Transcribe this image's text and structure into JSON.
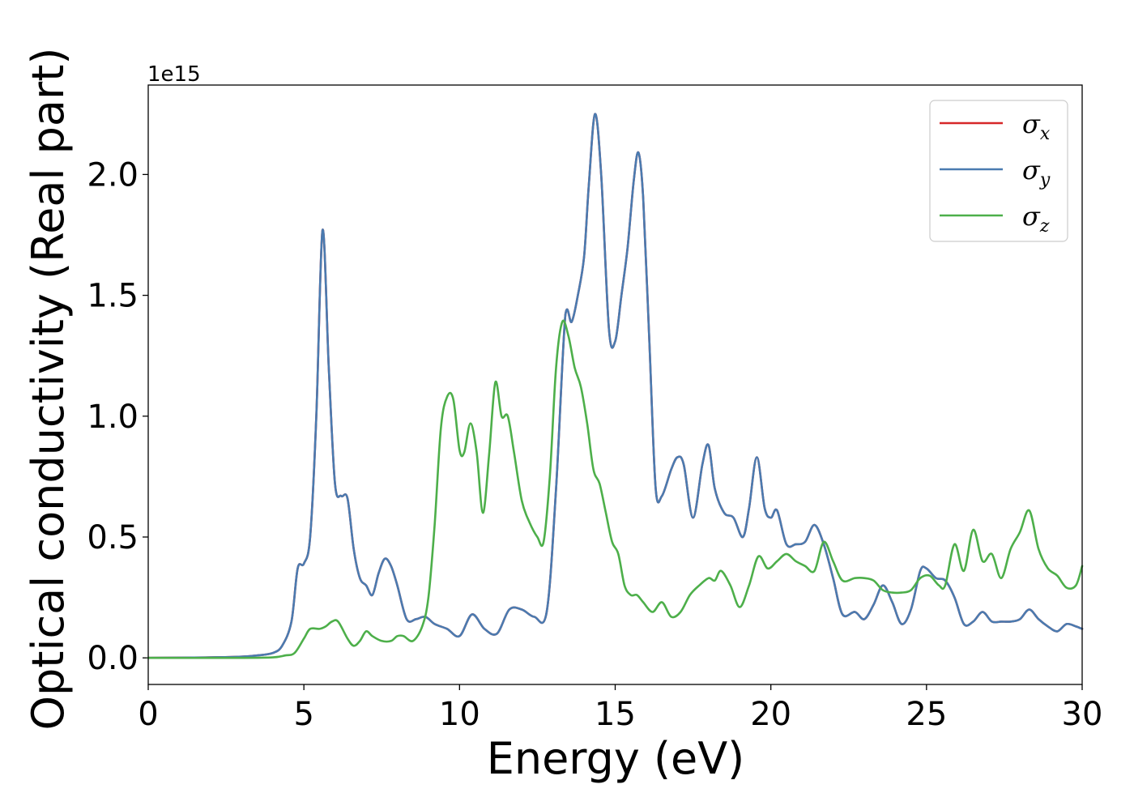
{
  "chart_data": {
    "type": "line",
    "xlabel": "Energy (eV)",
    "ylabel": "Optical conductivity (Real part)",
    "y_offset_label": "1e15",
    "xlim": [
      0,
      30
    ],
    "ylim": [
      -0.11,
      2.37
    ],
    "xticks": [
      0,
      5,
      10,
      15,
      20,
      25,
      30
    ],
    "xtick_labels": [
      "0",
      "5",
      "10",
      "15",
      "20",
      "25",
      "30"
    ],
    "yticks": [
      0.0,
      0.5,
      1.0,
      1.5,
      2.0
    ],
    "ytick_labels": [
      "0.0",
      "0.5",
      "1.0",
      "1.5",
      "2.0"
    ],
    "grid": false,
    "legend_position": "top-right",
    "series": [
      {
        "name": "σx",
        "legend_symbol": "σ",
        "legend_sub": "x",
        "color": "#d62728",
        "x": [
          0,
          2,
          3,
          3.5,
          4.0,
          4.3,
          4.6,
          4.8,
          5.0,
          5.2,
          5.4,
          5.6,
          5.8,
          6.0,
          6.2,
          6.4,
          6.6,
          6.8,
          7.0,
          7.2,
          7.4,
          7.6,
          7.8,
          8.0,
          8.3,
          8.6,
          8.9,
          9.2,
          9.6,
          10.0,
          10.4,
          10.8,
          11.2,
          11.6,
          12.0,
          12.4,
          12.8,
          13.1,
          13.4,
          13.6,
          13.8,
          14.0,
          14.15,
          14.35,
          14.55,
          14.8,
          15.0,
          15.2,
          15.4,
          15.6,
          15.75,
          15.9,
          16.1,
          16.3,
          16.5,
          16.8,
          17.0,
          17.2,
          17.5,
          17.8,
          18.0,
          18.2,
          18.5,
          18.8,
          19.1,
          19.3,
          19.55,
          19.8,
          20.0,
          20.2,
          20.5,
          20.8,
          21.1,
          21.4,
          21.7,
          22.0,
          22.3,
          22.7,
          23.0,
          23.3,
          23.6,
          23.9,
          24.2,
          24.5,
          24.8,
          25.0,
          25.3,
          25.6,
          25.9,
          26.2,
          26.5,
          26.8,
          27.1,
          27.4,
          27.7,
          28.0,
          28.3,
          28.6,
          28.9,
          29.2,
          29.5,
          29.8,
          30.0
        ],
        "y": [
          0.0,
          0.002,
          0.005,
          0.01,
          0.02,
          0.05,
          0.15,
          0.37,
          0.39,
          0.5,
          1.0,
          1.77,
          1.2,
          0.72,
          0.67,
          0.66,
          0.45,
          0.33,
          0.3,
          0.26,
          0.35,
          0.41,
          0.38,
          0.3,
          0.16,
          0.16,
          0.17,
          0.14,
          0.12,
          0.09,
          0.18,
          0.12,
          0.1,
          0.2,
          0.2,
          0.17,
          0.19,
          0.7,
          1.42,
          1.39,
          1.5,
          1.66,
          1.95,
          2.25,
          2.0,
          1.36,
          1.31,
          1.5,
          1.7,
          1.98,
          2.09,
          1.9,
          1.3,
          0.7,
          0.67,
          0.78,
          0.83,
          0.8,
          0.58,
          0.8,
          0.88,
          0.7,
          0.6,
          0.58,
          0.5,
          0.62,
          0.83,
          0.62,
          0.58,
          0.61,
          0.47,
          0.47,
          0.48,
          0.55,
          0.47,
          0.33,
          0.18,
          0.19,
          0.16,
          0.22,
          0.3,
          0.23,
          0.14,
          0.2,
          0.36,
          0.37,
          0.33,
          0.32,
          0.25,
          0.14,
          0.15,
          0.19,
          0.15,
          0.15,
          0.15,
          0.16,
          0.2,
          0.16,
          0.13,
          0.11,
          0.14,
          0.13,
          0.12
        ]
      },
      {
        "name": "σy",
        "legend_symbol": "σ",
        "legend_sub": "y",
        "color": "#4a7bb0",
        "x": [
          0,
          2,
          3,
          3.5,
          4.0,
          4.3,
          4.6,
          4.8,
          5.0,
          5.2,
          5.4,
          5.6,
          5.8,
          6.0,
          6.2,
          6.4,
          6.6,
          6.8,
          7.0,
          7.2,
          7.4,
          7.6,
          7.8,
          8.0,
          8.3,
          8.6,
          8.9,
          9.2,
          9.6,
          10.0,
          10.4,
          10.8,
          11.2,
          11.6,
          12.0,
          12.4,
          12.8,
          13.1,
          13.4,
          13.6,
          13.8,
          14.0,
          14.15,
          14.35,
          14.55,
          14.8,
          15.0,
          15.2,
          15.4,
          15.6,
          15.75,
          15.9,
          16.1,
          16.3,
          16.5,
          16.8,
          17.0,
          17.2,
          17.5,
          17.8,
          18.0,
          18.2,
          18.5,
          18.8,
          19.1,
          19.3,
          19.55,
          19.8,
          20.0,
          20.2,
          20.5,
          20.8,
          21.1,
          21.4,
          21.7,
          22.0,
          22.3,
          22.7,
          23.0,
          23.3,
          23.6,
          23.9,
          24.2,
          24.5,
          24.8,
          25.0,
          25.3,
          25.6,
          25.9,
          26.2,
          26.5,
          26.8,
          27.1,
          27.4,
          27.7,
          28.0,
          28.3,
          28.6,
          28.9,
          29.2,
          29.5,
          29.8,
          30.0
        ],
        "y": [
          0.0,
          0.002,
          0.005,
          0.01,
          0.02,
          0.05,
          0.15,
          0.37,
          0.39,
          0.5,
          1.0,
          1.77,
          1.2,
          0.72,
          0.67,
          0.66,
          0.45,
          0.33,
          0.3,
          0.26,
          0.35,
          0.41,
          0.38,
          0.3,
          0.16,
          0.16,
          0.17,
          0.14,
          0.12,
          0.09,
          0.18,
          0.12,
          0.1,
          0.2,
          0.2,
          0.17,
          0.19,
          0.7,
          1.42,
          1.39,
          1.5,
          1.66,
          1.95,
          2.25,
          2.0,
          1.36,
          1.31,
          1.5,
          1.7,
          1.98,
          2.09,
          1.9,
          1.3,
          0.7,
          0.67,
          0.78,
          0.83,
          0.8,
          0.58,
          0.8,
          0.88,
          0.7,
          0.6,
          0.58,
          0.5,
          0.62,
          0.83,
          0.62,
          0.58,
          0.61,
          0.47,
          0.47,
          0.48,
          0.55,
          0.47,
          0.33,
          0.18,
          0.19,
          0.16,
          0.22,
          0.3,
          0.23,
          0.14,
          0.2,
          0.36,
          0.37,
          0.33,
          0.32,
          0.25,
          0.14,
          0.15,
          0.19,
          0.15,
          0.15,
          0.15,
          0.16,
          0.2,
          0.16,
          0.13,
          0.11,
          0.14,
          0.13,
          0.12
        ]
      },
      {
        "name": "σz",
        "legend_symbol": "σ",
        "legend_sub": "z",
        "color": "#4daf4a",
        "x": [
          0,
          3,
          4.0,
          4.4,
          4.7,
          5.0,
          5.2,
          5.5,
          5.7,
          5.9,
          6.1,
          6.4,
          6.6,
          6.8,
          7.0,
          7.2,
          7.5,
          7.8,
          8.0,
          8.2,
          8.5,
          8.8,
          9.0,
          9.2,
          9.4,
          9.6,
          9.8,
          10.0,
          10.15,
          10.35,
          10.55,
          10.75,
          10.95,
          11.15,
          11.35,
          11.55,
          11.75,
          12.0,
          12.25,
          12.5,
          12.7,
          12.9,
          13.1,
          13.3,
          13.5,
          13.7,
          13.9,
          14.1,
          14.3,
          14.5,
          14.7,
          14.9,
          15.1,
          15.3,
          15.5,
          15.7,
          15.9,
          16.2,
          16.5,
          16.8,
          17.1,
          17.4,
          17.7,
          18.0,
          18.2,
          18.4,
          18.7,
          19.0,
          19.3,
          19.6,
          19.9,
          20.2,
          20.5,
          20.8,
          21.1,
          21.4,
          21.7,
          22.0,
          22.3,
          22.7,
          23.0,
          23.3,
          23.6,
          23.9,
          24.2,
          24.5,
          24.8,
          25.1,
          25.4,
          25.6,
          25.9,
          26.2,
          26.5,
          26.8,
          27.1,
          27.4,
          27.7,
          28.0,
          28.3,
          28.6,
          28.9,
          29.2,
          29.5,
          29.8,
          30.0
        ],
        "y": [
          0.0,
          0.0,
          0.002,
          0.01,
          0.02,
          0.08,
          0.12,
          0.12,
          0.13,
          0.15,
          0.15,
          0.08,
          0.05,
          0.07,
          0.11,
          0.09,
          0.07,
          0.07,
          0.09,
          0.09,
          0.07,
          0.13,
          0.25,
          0.55,
          0.95,
          1.08,
          1.07,
          0.86,
          0.85,
          0.97,
          0.85,
          0.6,
          0.84,
          1.14,
          1.0,
          1.0,
          0.85,
          0.65,
          0.56,
          0.5,
          0.48,
          0.75,
          1.2,
          1.39,
          1.33,
          1.2,
          1.12,
          0.97,
          0.78,
          0.72,
          0.6,
          0.48,
          0.43,
          0.3,
          0.26,
          0.26,
          0.23,
          0.19,
          0.23,
          0.17,
          0.19,
          0.26,
          0.3,
          0.33,
          0.32,
          0.36,
          0.3,
          0.21,
          0.3,
          0.42,
          0.37,
          0.4,
          0.43,
          0.4,
          0.38,
          0.36,
          0.48,
          0.4,
          0.32,
          0.33,
          0.33,
          0.32,
          0.28,
          0.27,
          0.27,
          0.28,
          0.33,
          0.34,
          0.3,
          0.3,
          0.47,
          0.36,
          0.53,
          0.4,
          0.43,
          0.33,
          0.45,
          0.52,
          0.61,
          0.45,
          0.37,
          0.34,
          0.29,
          0.3,
          0.38
        ]
      }
    ]
  }
}
